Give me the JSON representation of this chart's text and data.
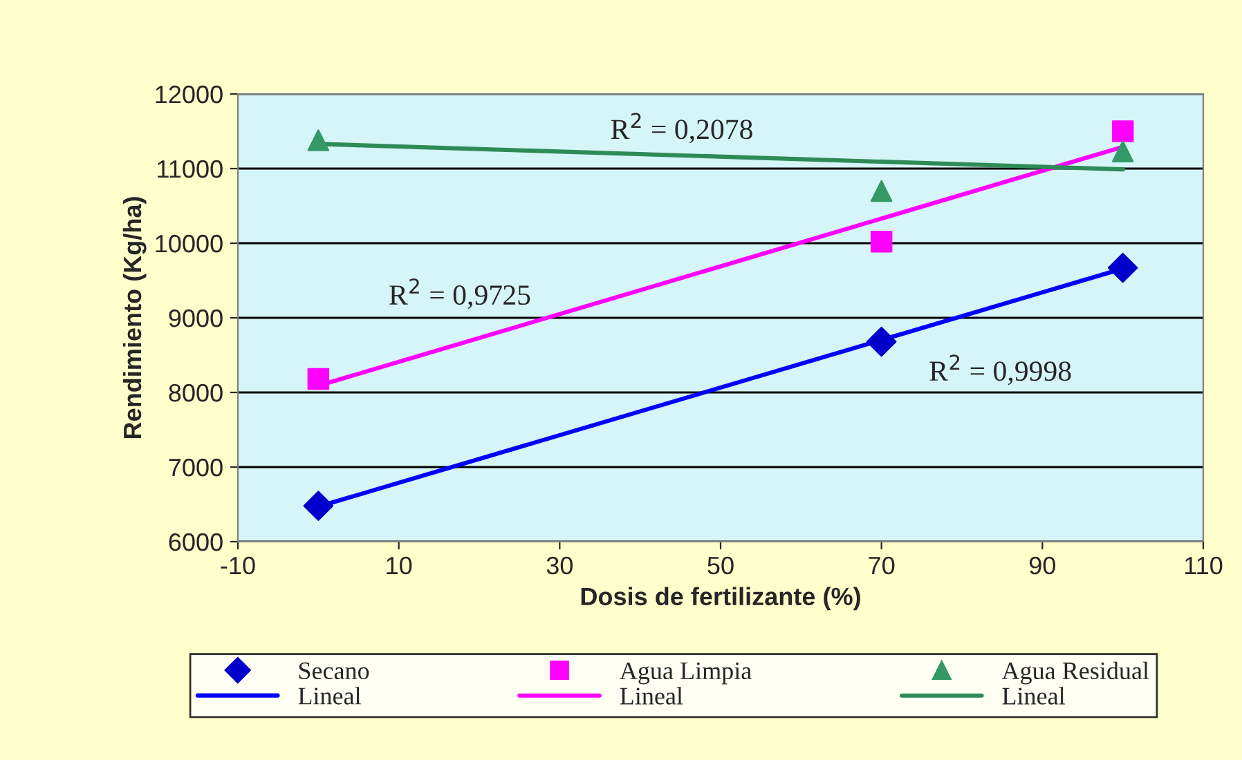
{
  "chart_data": {
    "type": "scatter",
    "xlabel": "Dosis de fertilizante (%)",
    "ylabel": "Rendimiento (Kg/ha)",
    "xlim": [
      -10,
      110
    ],
    "xticks": [
      -10,
      10,
      30,
      50,
      70,
      90,
      110
    ],
    "ylim": [
      6000,
      12000
    ],
    "yticks": [
      6000,
      7000,
      8000,
      9000,
      10000,
      11000,
      12000
    ],
    "grid": "y",
    "legend": "bottom",
    "series": [
      {
        "name": "Secano",
        "marker": "diamond",
        "color": "#0000cc",
        "x": [
          0,
          70,
          100
        ],
        "values": [
          6480,
          8680,
          9670
        ]
      },
      {
        "name": "Agua Limpia",
        "marker": "square",
        "color": "#ff00ff",
        "x": [
          0,
          70,
          100
        ],
        "values": [
          8180,
          10020,
          11500
        ]
      },
      {
        "name": "Agua Residual",
        "marker": "triangle",
        "color": "#339966",
        "x": [
          0,
          70,
          100
        ],
        "values": [
          11380,
          10700,
          11230
        ]
      },
      {
        "name": "Lineal",
        "type": "line",
        "line_style": "solid",
        "color": "#0000ff",
        "x": [
          0,
          100
        ],
        "values": [
          6470,
          9660
        ]
      },
      {
        "name": "Lineal",
        "type": "line",
        "line_style": "solid",
        "color": "#ff00ff",
        "x": [
          0,
          100
        ],
        "values": [
          8090,
          11290
        ]
      },
      {
        "name": "Lineal",
        "type": "line",
        "line_style": "solid",
        "color": "#2e8b57",
        "x": [
          0,
          100
        ],
        "values": [
          11330,
          10990
        ]
      }
    ],
    "annotations": [
      "R$^{2}$ = 0,2078",
      "R$^{2}$ = 0,9725",
      "R$^{2}$ = 0,9998"
    ]
  }
}
